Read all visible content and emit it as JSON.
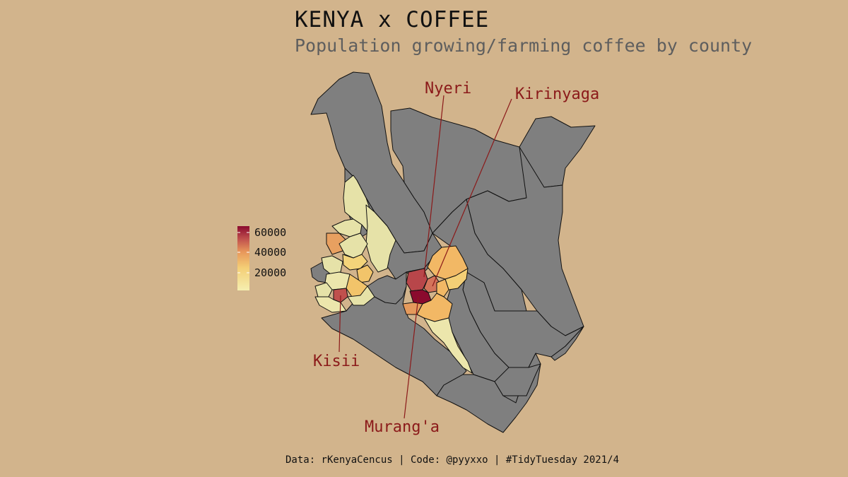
{
  "title": "KENYA x COFFEE",
  "subtitle": "Population growing/farming coffee by county",
  "caption": "Data: rKenyaCencus | Code: @pyyxxo | #TidyTuesday 2021/4",
  "colors": {
    "background": "#d2b48c",
    "no_data": "#7f7f7f",
    "scale_low": "#eee8a8",
    "scale_mid": "#f2c46a",
    "scale_high": "#8b0a2e",
    "callout": "#8b1a1a"
  },
  "legend": {
    "ticks": [
      "60000",
      "40000",
      "20000"
    ],
    "tick_values": [
      60000,
      40000,
      20000
    ],
    "min": 0,
    "max": 65000
  },
  "callouts": [
    {
      "id": "nyeri",
      "label": "Nyeri"
    },
    {
      "id": "kirinyaga",
      "label": "Kirinyaga"
    },
    {
      "id": "kisii",
      "label": "Kisii"
    },
    {
      "id": "muranga",
      "label": "Murang'a"
    }
  ]
}
